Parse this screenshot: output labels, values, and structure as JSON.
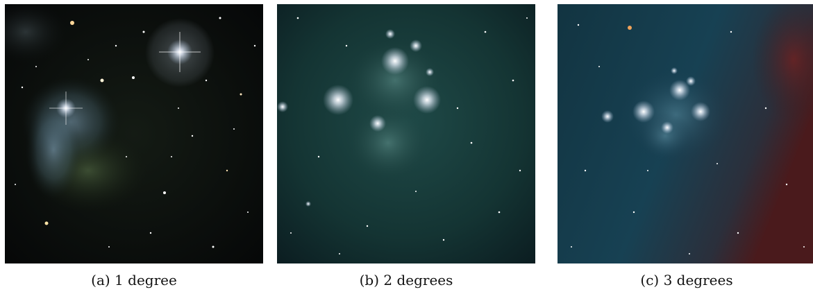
{
  "figure": {
    "panels": [
      {
        "caption": "(a) 1 degree"
      },
      {
        "caption": "(b) 2 degrees"
      },
      {
        "caption": "(c) 3 degrees"
      }
    ]
  }
}
